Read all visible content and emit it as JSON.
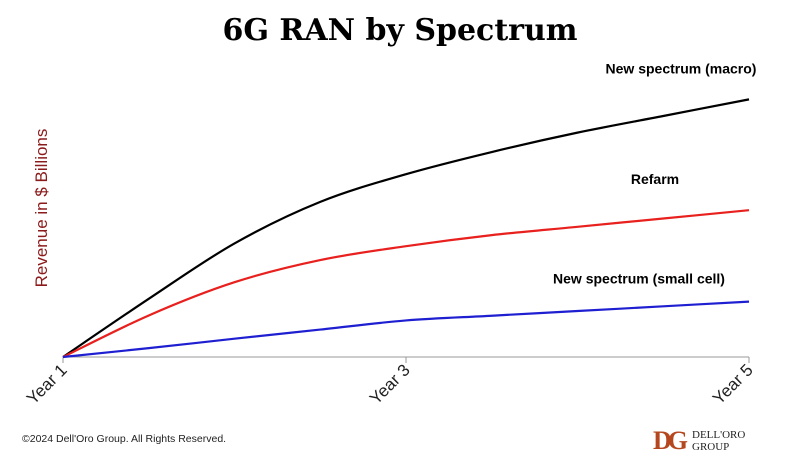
{
  "chart_data": {
    "type": "line",
    "title": "6G RAN by Spectrum",
    "ylabel": "Revenue in $ Billions",
    "xlabel": "",
    "categories": [
      "Year 1",
      "Year 3",
      "Year 5"
    ],
    "x": [
      1,
      1.5,
      2,
      2.5,
      3,
      3.5,
      4,
      4.5,
      5
    ],
    "ylim": [
      0,
      100
    ],
    "grid": false,
    "legend": "inline labels",
    "series": [
      {
        "name": "New spectrum (macro)",
        "color": "#000000",
        "values": [
          0,
          21,
          41,
          56,
          66,
          74,
          81,
          87,
          93
        ]
      },
      {
        "name": "Refarm",
        "color": "#e8201e",
        "values": [
          0,
          15,
          27,
          35,
          40,
          44,
          47,
          50,
          53
        ]
      },
      {
        "name": "New spectrum (small cell)",
        "color": "#1f1fd2",
        "values": [
          0,
          3.2,
          6.6,
          9.9,
          13.2,
          14.9,
          16.6,
          18.3,
          20
        ]
      }
    ]
  },
  "footer": {
    "copyright": "©2024 Dell'Oro Group. All Rights Reserved.",
    "logo_mark": "DG",
    "logo_line1": "DELL'ORO",
    "logo_line2": "GROUP"
  },
  "colors": {
    "ylabel": "#8b1a1a",
    "logo": "#b5471f",
    "axis": "#999999"
  }
}
